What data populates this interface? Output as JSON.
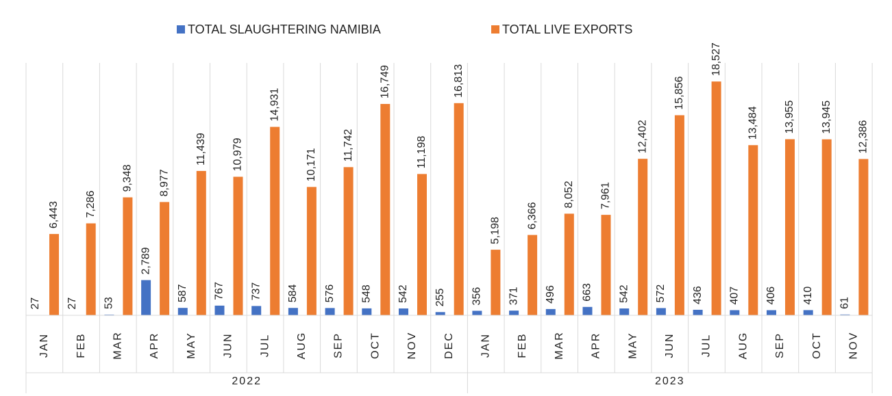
{
  "chart_data": {
    "type": "bar",
    "groups": [
      {
        "name": "2022",
        "categories": [
          "JAN",
          "FEB",
          "MAR",
          "APR",
          "MAY",
          "JUN",
          "JUL",
          "AUG",
          "SEP",
          "OCT",
          "NOV",
          "DEC"
        ]
      },
      {
        "name": "2023",
        "categories": [
          "JAN",
          "FEB",
          "MAR",
          "APR",
          "MAY",
          "JUN",
          "JUL",
          "AUG",
          "SEP",
          "OCT",
          "NOV"
        ]
      }
    ],
    "series": [
      {
        "name": "TOTAL SLAUGHTERING NAMIBIA",
        "color": "#4472c4",
        "values": [
          27,
          27,
          53,
          2789,
          587,
          767,
          737,
          584,
          576,
          548,
          542,
          255,
          356,
          371,
          496,
          663,
          542,
          572,
          436,
          407,
          406,
          410,
          61
        ],
        "value_labels": [
          "27",
          "27",
          "53",
          "2,789",
          "587",
          "767",
          "737",
          "584",
          "576",
          "548",
          "542",
          "255",
          "356",
          "371",
          "496",
          "663",
          "542",
          "572",
          "436",
          "407",
          "406",
          "410",
          "61"
        ]
      },
      {
        "name": "TOTAL LIVE EXPORTS",
        "color": "#ed7d31",
        "values": [
          6443,
          7286,
          9348,
          8977,
          11439,
          10979,
          14931,
          10171,
          11742,
          16749,
          11198,
          16813,
          5198,
          6366,
          8052,
          7961,
          12402,
          15856,
          18527,
          13484,
          13955,
          13945,
          12386
        ],
        "value_labels": [
          "6,443",
          "7,286",
          "9,348",
          "8,977",
          "11,439",
          "10,979",
          "14,931",
          "10,171",
          "11,742",
          "16,749",
          "11,198",
          "16,813",
          "5,198",
          "6,366",
          "8,052",
          "7,961",
          "12,402",
          "15,856",
          "18,527",
          "13,484",
          "13,955",
          "13,945",
          "12,386"
        ]
      }
    ],
    "ylim": [
      0,
      20000
    ],
    "legend": "top"
  }
}
